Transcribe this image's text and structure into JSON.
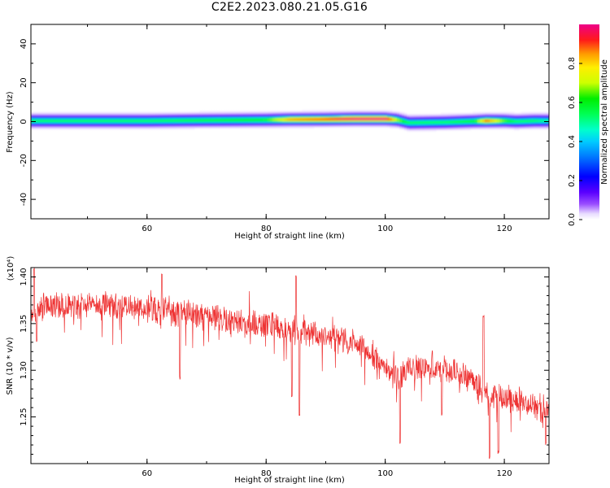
{
  "title": "C2E2.2023.080.21.05.G16",
  "chart_data": [
    {
      "type": "heatmap",
      "title": "",
      "xlabel": "Height of straight line (km)",
      "ylabel": "Frequency (Hz)",
      "xlim": [
        40.5,
        127.5
      ],
      "ylim": [
        -50,
        50
      ],
      "xticks": [
        60,
        80,
        100,
        120
      ],
      "yticks": [
        -40,
        -20,
        0,
        20,
        40
      ],
      "colorbar": {
        "label": "Normalized spectral amplitude",
        "range": [
          0,
          1
        ],
        "ticks": [
          0.0,
          0.2,
          0.4,
          0.6,
          0.8
        ],
        "tick_labels": [
          "0.0",
          "0.2",
          "0.4",
          "0.6",
          "0.8"
        ]
      },
      "band": {
        "x": [
          40.5,
          50,
          60,
          70,
          80,
          84,
          90,
          95,
          100,
          102,
          104,
          110,
          115,
          117,
          120,
          122,
          125,
          127.5
        ],
        "center_hz": [
          0.5,
          0.5,
          0.5,
          0.8,
          1.0,
          1.2,
          1.3,
          1.5,
          1.5,
          1.0,
          -0.5,
          -0.2,
          0.3,
          0.5,
          0.5,
          0.2,
          0.5,
          0.5
        ],
        "peak_amplitude": [
          0.45,
          0.45,
          0.45,
          0.48,
          0.52,
          0.75,
          0.82,
          0.95,
          0.95,
          0.6,
          0.45,
          0.45,
          0.5,
          0.8,
          0.55,
          0.45,
          0.45,
          0.4
        ]
      }
    },
    {
      "type": "line",
      "title": "",
      "xlabel": "Height of straight line (km)",
      "ylabel": "SNR (10 * v/v)",
      "y_multiplier_label": "(x10⁴)",
      "xlim": [
        40.5,
        127.5
      ],
      "ylim": [
        1.2,
        1.41
      ],
      "xticks": [
        60,
        80,
        100,
        120
      ],
      "yticks": [
        1.25,
        1.3,
        1.35,
        1.4
      ],
      "ytick_labels": [
        "1.25",
        "1.30",
        "1.35",
        "1.40"
      ],
      "series": [
        {
          "color": "#ee3333",
          "trend_x": [
            40.5,
            42,
            45,
            50,
            55,
            60,
            65,
            70,
            75,
            80,
            84,
            88,
            92,
            96,
            100,
            102,
            104,
            108,
            112,
            115,
            118,
            120,
            123,
            127.5
          ],
          "trend_y": [
            1.355,
            1.368,
            1.37,
            1.37,
            1.369,
            1.366,
            1.362,
            1.357,
            1.352,
            1.348,
            1.344,
            1.338,
            1.334,
            1.326,
            1.305,
            1.29,
            1.3,
            1.305,
            1.298,
            1.286,
            1.272,
            1.27,
            1.268,
            1.258
          ],
          "noise_amplitude": 0.014,
          "dips": [
            {
              "x": 41.5,
              "y": 1.33
            },
            {
              "x": 65.5,
              "y": 1.29
            },
            {
              "x": 84.3,
              "y": 1.27
            },
            {
              "x": 85.6,
              "y": 1.25
            },
            {
              "x": 102.5,
              "y": 1.22
            },
            {
              "x": 109.5,
              "y": 1.25
            },
            {
              "x": 117.5,
              "y": 1.204
            },
            {
              "x": 119.0,
              "y": 1.21
            },
            {
              "x": 127.0,
              "y": 1.22
            }
          ],
          "spikes": [
            {
              "x": 41.0,
              "y": 1.41
            },
            {
              "x": 62.5,
              "y": 1.405
            },
            {
              "x": 85.0,
              "y": 1.402
            },
            {
              "x": 116.5,
              "y": 1.36
            }
          ]
        }
      ]
    }
  ]
}
